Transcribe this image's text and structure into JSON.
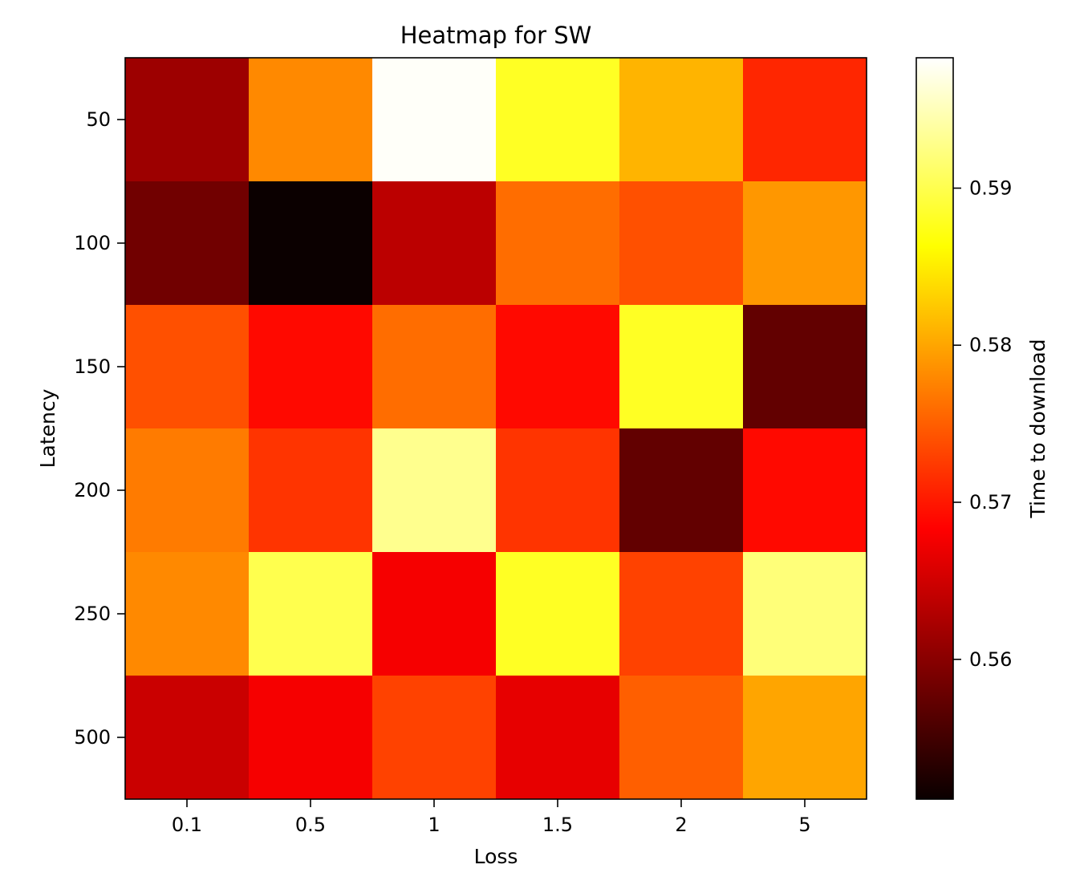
{
  "chart_data": {
    "type": "heatmap",
    "title": "Heatmap for SW",
    "xlabel": "Loss",
    "ylabel": "Latency",
    "x_categories": [
      "0.1",
      "0.5",
      "1",
      "1.5",
      "2",
      "5"
    ],
    "y_categories": [
      "50",
      "100",
      "150",
      "200",
      "250",
      "500"
    ],
    "values": [
      [
        0.561,
        0.578,
        0.598,
        0.588,
        0.581,
        0.571
      ],
      [
        0.558,
        0.551,
        0.563,
        0.576,
        0.574,
        0.579
      ],
      [
        0.574,
        0.569,
        0.576,
        0.569,
        0.588,
        0.557
      ],
      [
        0.577,
        0.572,
        0.593,
        0.572,
        0.557,
        0.569
      ],
      [
        0.578,
        0.59,
        0.567,
        0.588,
        0.573,
        0.592
      ],
      [
        0.564,
        0.567,
        0.573,
        0.566,
        0.575,
        0.58
      ]
    ],
    "colormap": "hot",
    "vmin": 0.5511,
    "vmax": 0.5983,
    "colorbar": {
      "label": "Time to download",
      "ticks": [
        0.56,
        0.57,
        0.58,
        0.59
      ],
      "tick_labels": [
        "0.56",
        "0.57",
        "0.58",
        "0.59"
      ]
    },
    "grid": false
  }
}
